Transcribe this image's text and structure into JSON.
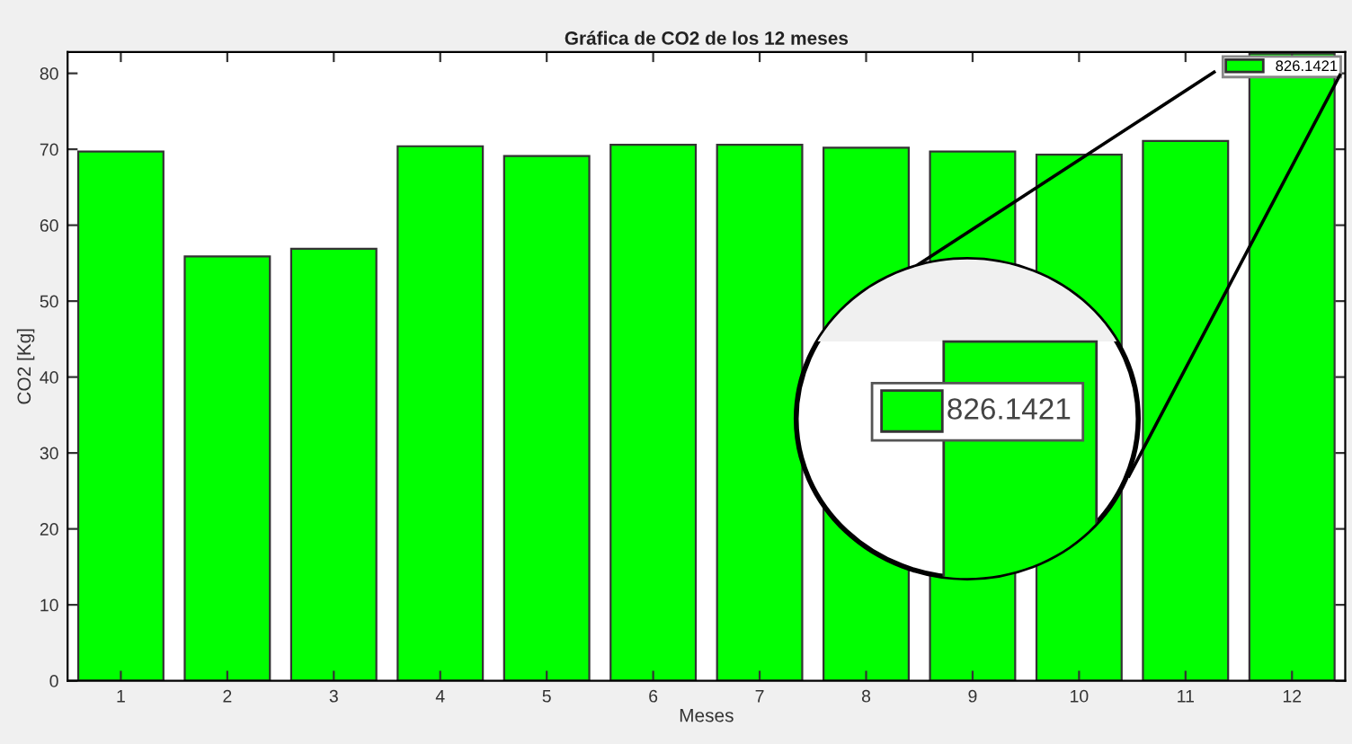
{
  "chart_data": {
    "type": "bar",
    "title": "Gráfica de CO2 de los 12 meses",
    "xlabel": "Meses",
    "ylabel": "CO2 [Kg]",
    "categories": [
      "1",
      "2",
      "3",
      "4",
      "5",
      "6",
      "7",
      "8",
      "9",
      "10",
      "11",
      "12"
    ],
    "series": [
      {
        "name": "826.1421",
        "color": "#00ff00",
        "values": [
          69.7,
          55.9,
          56.9,
          70.4,
          69.1,
          70.6,
          70.6,
          70.2,
          69.7,
          69.3,
          71.1,
          82.6
        ]
      }
    ],
    "ylim": [
      0,
      82.8
    ],
    "yticks": [
      0,
      10,
      20,
      30,
      40,
      50,
      60,
      70,
      80
    ],
    "grid": false,
    "legend": "top right",
    "annotations": [
      "826.1421"
    ]
  }
}
